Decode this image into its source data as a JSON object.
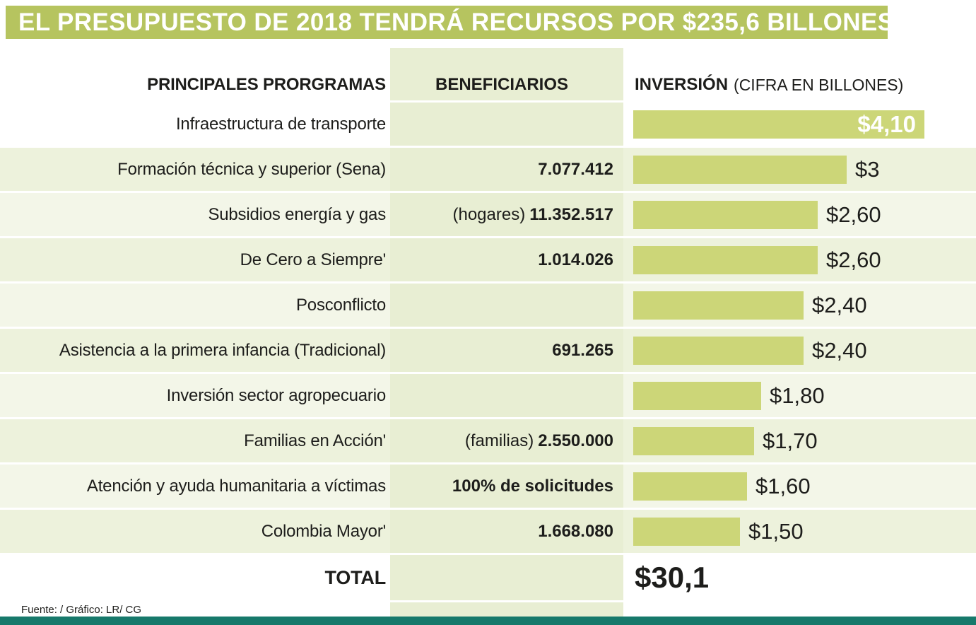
{
  "title": "EL PRESUPUESTO DE 2018 TENDRÁ RECURSOS POR $235,6 BILLONES",
  "columns": {
    "programs": "PRINCIPALES PRORGRAMAS",
    "beneficiaries": "BENEFICIARIOS",
    "investment": "INVERSIÓN",
    "investment_note": "(CIFRA EN BILLONES)"
  },
  "rows": [
    {
      "program": "Infraestructura de transporte",
      "beneficiaries_prefix": "",
      "beneficiaries": "",
      "value": 4.1,
      "value_label": "$4,10",
      "label_inside": true
    },
    {
      "program": "Formación técnica y superior (Sena)",
      "beneficiaries_prefix": "",
      "beneficiaries": "7.077.412",
      "value": 3,
      "value_label": "$3",
      "label_inside": false
    },
    {
      "program": "Subsidios energía y gas",
      "beneficiaries_prefix": "(hogares)",
      "beneficiaries": "11.352.517",
      "value": 2.6,
      "value_label": "$2,60",
      "label_inside": false
    },
    {
      "program": "De Cero a Siempre'",
      "beneficiaries_prefix": "",
      "beneficiaries": "1.014.026",
      "value": 2.6,
      "value_label": "$2,60",
      "label_inside": false
    },
    {
      "program": "Posconflicto",
      "beneficiaries_prefix": "",
      "beneficiaries": "",
      "value": 2.4,
      "value_label": "$2,40",
      "label_inside": false
    },
    {
      "program": "Asistencia a la primera infancia (Tradicional)",
      "beneficiaries_prefix": "",
      "beneficiaries": "691.265",
      "value": 2.4,
      "value_label": "$2,40",
      "label_inside": false
    },
    {
      "program": "Inversión sector agropecuario",
      "beneficiaries_prefix": "",
      "beneficiaries": "",
      "value": 1.8,
      "value_label": "$1,80",
      "label_inside": false
    },
    {
      "program": "Familias en Acción'",
      "beneficiaries_prefix": "(familias)",
      "beneficiaries": "2.550.000",
      "value": 1.7,
      "value_label": "$1,70",
      "label_inside": false
    },
    {
      "program": "Atención y ayuda humanitaria a víctimas",
      "beneficiaries_prefix": "",
      "beneficiaries": "100% de solicitudes",
      "value": 1.6,
      "value_label": "$1,60",
      "label_inside": false
    },
    {
      "program": "Colombia Mayor'",
      "beneficiaries_prefix": "",
      "beneficiaries": "1.668.080",
      "value": 1.5,
      "value_label": "$1,50",
      "label_inside": false
    }
  ],
  "total": {
    "label": "TOTAL",
    "value_label": "$30,1"
  },
  "source": "Fuente: / Gráfico: LR/ CG",
  "colors": {
    "title_bar": "#b6c45f",
    "bar": "#ccd678",
    "column_band": "#e8eed3",
    "row_stripe": "#edf2dc",
    "bottom_strip": "#17796b",
    "text": "#1d1d1b",
    "bar_inside_label": "#ffffff"
  },
  "chart_data": {
    "type": "bar",
    "orientation": "horizontal",
    "title": "EL PRESUPUESTO DE 2018 TENDRÁ RECURSOS POR $235,6 BILLONES",
    "categories": [
      "Infraestructura de transporte",
      "Formación técnica y superior (Sena)",
      "Subsidios energía y gas",
      "De Cero a Siempre'",
      "Posconflicto",
      "Asistencia a la primera infancia (Tradicional)",
      "Inversión sector agropecuario",
      "Familias en Acción'",
      "Atención y ayuda humanitaria a víctimas",
      "Colombia Mayor'"
    ],
    "values": [
      4.1,
      3,
      2.6,
      2.6,
      2.4,
      2.4,
      1.8,
      1.7,
      1.6,
      1.5
    ],
    "value_labels": [
      "$4,10",
      "$3",
      "$2,60",
      "$2,60",
      "$2,40",
      "$2,40",
      "$1,80",
      "$1,70",
      "$1,60",
      "$1,50"
    ],
    "beneficiaries": [
      "",
      "7.077.412",
      "(hogares) 11.352.517",
      "1.014.026",
      "",
      "691.265",
      "",
      "(familias) 2.550.000",
      "100% de solicitudes",
      "1.668.080"
    ],
    "total": 30.1,
    "total_label": "$30,1",
    "unit": "billones",
    "xlabel": "INVERSIÓN (CIFRA EN BILLONES)",
    "xlim": [
      0,
      4.5
    ],
    "grid": false,
    "legend": false
  }
}
